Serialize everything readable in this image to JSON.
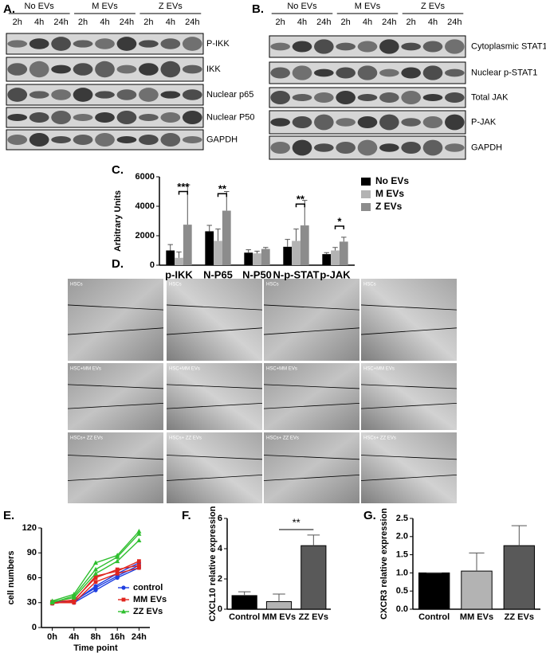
{
  "panels": {
    "a": "A.",
    "b": "B.",
    "c": "C.",
    "d": "D.",
    "e": "E.",
    "f": "F.",
    "g": "G."
  },
  "blots": [
    {
      "groups": [
        "No EVs",
        "M EVs",
        "Z EVs"
      ],
      "times": [
        "2h",
        "4h",
        "24h",
        "2h",
        "4h",
        "24h",
        "2h",
        "4h",
        "24h"
      ],
      "bands": [
        "P-IKK",
        "IKK",
        "Nuclear p65",
        "Nuclear P50",
        "GAPDH"
      ]
    },
    {
      "groups": [
        "No EVs",
        "M EVs",
        "Z EVs"
      ],
      "times": [
        "2h",
        "4h",
        "24h",
        "2h",
        "4h",
        "24h",
        "2h",
        "4h",
        "24h"
      ],
      "bands": [
        "Cytoplasmic STAT1",
        "Nuclear p-STAT1",
        "Total JAK",
        "P-JAK",
        "GAPDH"
      ]
    }
  ],
  "micrographs": [
    [
      "HSCs",
      "HSCs",
      "HSCs",
      "HSCs"
    ],
    [
      "HSC+MM EVs",
      "HSC+MM EVs",
      "HSC+MM EVs",
      "HSC+MM EVs"
    ],
    [
      "HSCs+ ZZ EVs",
      "HSCs+ ZZ EVs",
      "HSCs+ ZZ EVs",
      "HSCs+ ZZ EVs"
    ]
  ],
  "chart_data": [
    {
      "type": "bar",
      "y_label": "Arbitrary Units",
      "categories": [
        "p-IKK",
        "N-P65",
        "N-P50",
        "N-p-STAT",
        "p-JAK"
      ],
      "series": [
        {
          "name": "No EVs",
          "color": "#000000",
          "values": [
            1000,
            2300,
            850,
            1250,
            750
          ],
          "errors": [
            400,
            400,
            200,
            500,
            100
          ]
        },
        {
          "name": "M EVs",
          "color": "#b3b3b3",
          "values": [
            500,
            1650,
            800,
            1650,
            1000
          ],
          "errors": [
            400,
            800,
            150,
            800,
            200
          ]
        },
        {
          "name": "Z EVs",
          "color": "#8c8c8c",
          "values": [
            2750,
            3700,
            1100,
            2700,
            1600
          ],
          "errors": [
            2700,
            1300,
            100,
            1700,
            300
          ]
        }
      ],
      "ylim": [
        0,
        6000
      ],
      "yticks": [
        0,
        2000,
        4000,
        6000
      ],
      "annotations": [
        "***",
        "**",
        "**",
        "*"
      ],
      "legend": "right"
    },
    {
      "type": "line",
      "x_label": "Time point",
      "y_label": "cell numbers",
      "categories": [
        "0h",
        "4h",
        "8h",
        "16h",
        "24h"
      ],
      "series": [
        {
          "name": "control",
          "color": "#1f3fe0",
          "marker": "circle",
          "replicates": [
            [
              30,
              30,
              45,
              60,
              72
            ],
            [
              29,
              32,
              48,
              62,
              75
            ],
            [
              31,
              31,
              50,
              65,
              78
            ]
          ]
        },
        {
          "name": "MM EVs",
          "color": "#e0261f",
          "marker": "square",
          "replicates": [
            [
              30,
              30,
              55,
              65,
              72
            ],
            [
              31,
              33,
              60,
              70,
              75
            ],
            [
              29,
              32,
              62,
              68,
              80
            ]
          ]
        },
        {
          "name": "ZZ EVs",
          "color": "#2fbf2f",
          "marker": "triangle",
          "replicates": [
            [
              31,
              36,
              65,
              80,
              105
            ],
            [
              30,
              38,
              70,
              85,
              113
            ],
            [
              32,
              40,
              78,
              87,
              116
            ]
          ]
        }
      ],
      "ylim": [
        0,
        120
      ],
      "yticks": [
        0,
        30,
        60,
        90,
        120
      ],
      "legend": "lower right"
    },
    {
      "type": "bar",
      "y_label": "CXCL10 relative expression",
      "categories": [
        "Control",
        "MM EVs",
        "ZZ EVs"
      ],
      "values": [
        0.9,
        0.5,
        4.2
      ],
      "errors": [
        0.25,
        0.5,
        0.7
      ],
      "colors": [
        "#000000",
        "#b3b3b3",
        "#595959"
      ],
      "ylim": [
        0,
        6
      ],
      "yticks": [
        0,
        2,
        4,
        6
      ],
      "annotations": [
        "**"
      ]
    },
    {
      "type": "bar",
      "y_label": "CXCR3 relative expression",
      "categories": [
        "Control",
        "MM EVs",
        "ZZ EVs"
      ],
      "values": [
        1.0,
        1.05,
        1.75
      ],
      "errors": [
        0,
        0.5,
        0.55
      ],
      "colors": [
        "#000000",
        "#b3b3b3",
        "#595959"
      ],
      "ylim": [
        0,
        2.5
      ],
      "yticks": [
        {
          "value": 0,
          "label": "0.0"
        },
        0.5,
        {
          "value": 1,
          "label": "1.0"
        },
        1.5,
        {
          "value": 2,
          "label": "2.0"
        },
        2.5
      ]
    }
  ]
}
